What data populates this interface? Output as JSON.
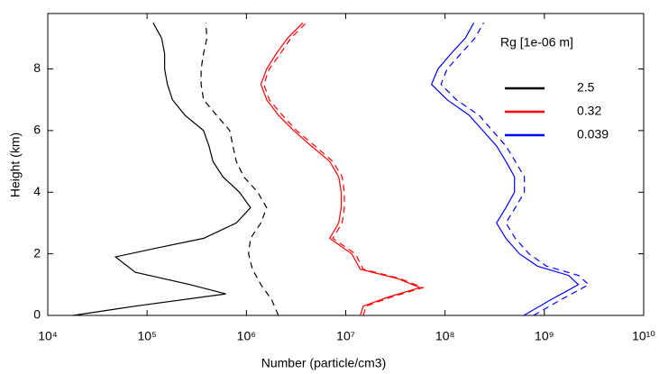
{
  "chart_data": {
    "type": "line",
    "xlabel": "Number (particle/cm3)",
    "ylabel": "Height (km)",
    "xscale": "log",
    "xlim": [
      10000,
      10000000000
    ],
    "xticks": [
      {
        "value": 10000,
        "label": "10⁴"
      },
      {
        "value": 100000,
        "label": "10⁵"
      },
      {
        "value": 1000000,
        "label": "10⁶"
      },
      {
        "value": 10000000,
        "label": "10⁷"
      },
      {
        "value": 100000000,
        "label": "10⁸"
      },
      {
        "value": 1000000000,
        "label": "10⁹"
      },
      {
        "value": 10000000000,
        "label": "10¹⁰"
      }
    ],
    "ylim": [
      0,
      9.8
    ],
    "yticks": [
      0,
      2,
      4,
      6,
      8
    ],
    "legend_title": "Rg [1e-06 m]",
    "legend": "upper right",
    "series": [
      {
        "name": "2.5",
        "color": "#000000",
        "dashed": false,
        "x": [
          18000,
          76000,
          620000,
          270000,
          76000,
          48000,
          130000,
          370000,
          790000,
          1100000,
          850000,
          580000,
          460000,
          420000,
          370000,
          240000,
          180000,
          160000,
          150000,
          150000,
          140000,
          115000
        ],
        "y": [
          0,
          0.3,
          0.7,
          1,
          1.4,
          1.9,
          2.2,
          2.5,
          3,
          3.5,
          4,
          4.5,
          5,
          5.5,
          6,
          6.5,
          7,
          7.5,
          8,
          8.5,
          9,
          9.5
        ]
      },
      {
        "color": "#000000",
        "dashed": true,
        "x": [
          2100000,
          1800000,
          1400000,
          1150000,
          1050000,
          1100000,
          1400000,
          1600000,
          1300000,
          940000,
          790000,
          730000,
          680000,
          500000,
          370000,
          350000,
          350000,
          370000,
          400000,
          390000
        ],
        "y": [
          0,
          0.5,
          1,
          1.5,
          2,
          2.5,
          3,
          3.5,
          4,
          4.5,
          5,
          5.5,
          6,
          6.5,
          7,
          7.5,
          8,
          8.5,
          9,
          9.5
        ]
      },
      {
        "name": "0.32",
        "color": "#ff0000",
        "dashed": false,
        "x": [
          14000000,
          15000000,
          27000000,
          56000000,
          33000000,
          14000000,
          11500000,
          6900000,
          8500000,
          9000000,
          9000000,
          8500000,
          6900000,
          4500000,
          3000000,
          2100000,
          1600000,
          1400000,
          1600000,
          2000000,
          2600000,
          3700000
        ],
        "y": [
          0,
          0.3,
          0.6,
          0.9,
          1.2,
          1.5,
          2,
          2.5,
          3,
          3.5,
          4,
          4.5,
          5,
          5.5,
          6,
          6.5,
          7,
          7.5,
          8,
          8.5,
          9,
          9.5
        ]
      },
      {
        "color": "#ff0000",
        "dashed": true,
        "x": [
          15000000,
          16000000,
          29000000,
          60000000,
          35000000,
          15000000,
          12500000,
          7400000,
          9200000,
          9700000,
          9700000,
          9200000,
          7400000,
          4900000,
          3200000,
          2300000,
          1700000,
          1500000,
          1700000,
          2200000,
          2800000,
          4000000
        ],
        "y": [
          0,
          0.3,
          0.6,
          0.9,
          1.2,
          1.5,
          2,
          2.5,
          3,
          3.5,
          4,
          4.5,
          5,
          5.5,
          6,
          6.5,
          7,
          7.5,
          8,
          8.5,
          9,
          9.5
        ]
      },
      {
        "name": "0.039",
        "color": "#0000ff",
        "dashed": false,
        "x": [
          620000000,
          1150000000,
          2200000000,
          1750000000,
          850000000,
          560000000,
          410000000,
          330000000,
          410000000,
          500000000,
          500000000,
          410000000,
          330000000,
          240000000,
          175000000,
          105000000,
          73000000,
          85000000,
          115000000,
          160000000,
          195000000
        ],
        "y": [
          0,
          0.5,
          1,
          1.3,
          1.6,
          2,
          2.5,
          3,
          3.5,
          4,
          4.5,
          5,
          5.5,
          6,
          6.5,
          7,
          7.5,
          8,
          8.5,
          9,
          9.5
        ]
      },
      {
        "color": "#0000ff",
        "dashed": true,
        "x": [
          780000000,
          1450000000,
          2800000000,
          2200000000,
          1050000000,
          700000000,
          510000000,
          410000000,
          510000000,
          630000000,
          630000000,
          510000000,
          410000000,
          300000000,
          220000000,
          130000000,
          91000000,
          105000000,
          145000000,
          200000000,
          245000000
        ],
        "y": [
          0,
          0.5,
          1,
          1.3,
          1.6,
          2,
          2.5,
          3,
          3.5,
          4,
          4.5,
          5,
          5.5,
          6,
          6.5,
          7,
          7.5,
          8,
          8.5,
          9,
          9.5
        ]
      }
    ]
  }
}
